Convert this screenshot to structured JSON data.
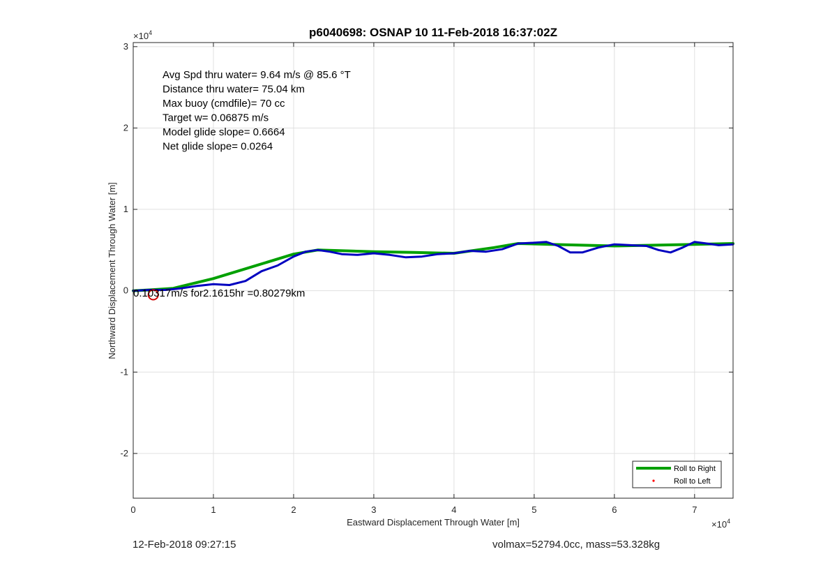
{
  "chart_data": {
    "type": "line",
    "title": "p6040698: OSNAP 10 11-Feb-2018 16:37:02Z",
    "xlabel": "Eastward Displacement Through Water [m]",
    "ylabel": "Northward Displacement Through Water [m]",
    "x_exponent_label": "×10",
    "y_exponent_label": "×10",
    "exponent": "4",
    "xlim": [
      0,
      74800
    ],
    "ylim": [
      -25500,
      30500
    ],
    "x_ticks": [
      0,
      10000,
      20000,
      30000,
      40000,
      50000,
      60000,
      70000
    ],
    "x_tick_labels": [
      "0",
      "1",
      "2",
      "3",
      "4",
      "5",
      "6",
      "7"
    ],
    "y_ticks": [
      -20000,
      -10000,
      0,
      10000,
      20000,
      30000
    ],
    "y_tick_labels": [
      "-2",
      "-1",
      "0",
      "1",
      "2",
      "3"
    ],
    "grid": true,
    "legend_position": "bottom-right",
    "annotations": [
      "Avg Spd thru water=  9.64 m/s @  85.6 °T",
      "Distance thru water= 75.04 km",
      "Max buoy (cmdfile)= 70 cc",
      "Target w= 0.06875 m/s",
      "Model glide slope= 0.6664",
      "Net glide slope= 0.0264"
    ],
    "current_label": "0.10317m/s for2.1615hr =0.80279km",
    "series": [
      {
        "name": "Roll to Right",
        "color": "#00a000",
        "x": [
          0,
          2000,
          5000,
          10000,
          15000,
          20000,
          23000,
          30000,
          35000,
          40000,
          45000,
          48000,
          52000,
          56000,
          60000,
          65000,
          70000,
          74800
        ],
        "y": [
          0,
          100,
          300,
          1500,
          3000,
          4500,
          5000,
          4800,
          4700,
          4600,
          5300,
          5800,
          5700,
          5600,
          5500,
          5600,
          5700,
          5800
        ]
      },
      {
        "name": "Roll to Left",
        "color": "#ff0000",
        "x": [],
        "y": []
      },
      {
        "name": "",
        "color": "#0000c0",
        "x": [
          0,
          2000,
          4000,
          6000,
          8000,
          10000,
          12000,
          14000,
          16000,
          18000,
          20000,
          21500,
          23000,
          24500,
          26000,
          28000,
          30000,
          32000,
          34000,
          36000,
          38000,
          40000,
          42000,
          44000,
          46000,
          48000,
          50000,
          51500,
          53000,
          54500,
          56000,
          58000,
          60000,
          62000,
          64000,
          65500,
          67000,
          68500,
          70000,
          71500,
          73000,
          74800
        ],
        "y": [
          0,
          100,
          100,
          300,
          600,
          800,
          700,
          1200,
          2400,
          3100,
          4200,
          4800,
          5000,
          4800,
          4500,
          4400,
          4600,
          4400,
          4100,
          4200,
          4500,
          4600,
          4900,
          4800,
          5100,
          5800,
          5900,
          6000,
          5500,
          4700,
          4700,
          5300,
          5700,
          5600,
          5500,
          5000,
          4700,
          5300,
          6000,
          5800,
          5600,
          5700
        ]
      }
    ],
    "start_marker": {
      "x": 2500,
      "y": -500,
      "color": "#d00000"
    }
  },
  "footer": {
    "timestamp": "12-Feb-2018 09:27:15",
    "summary": "volmax=52794.0cc, mass=53.328kg"
  }
}
